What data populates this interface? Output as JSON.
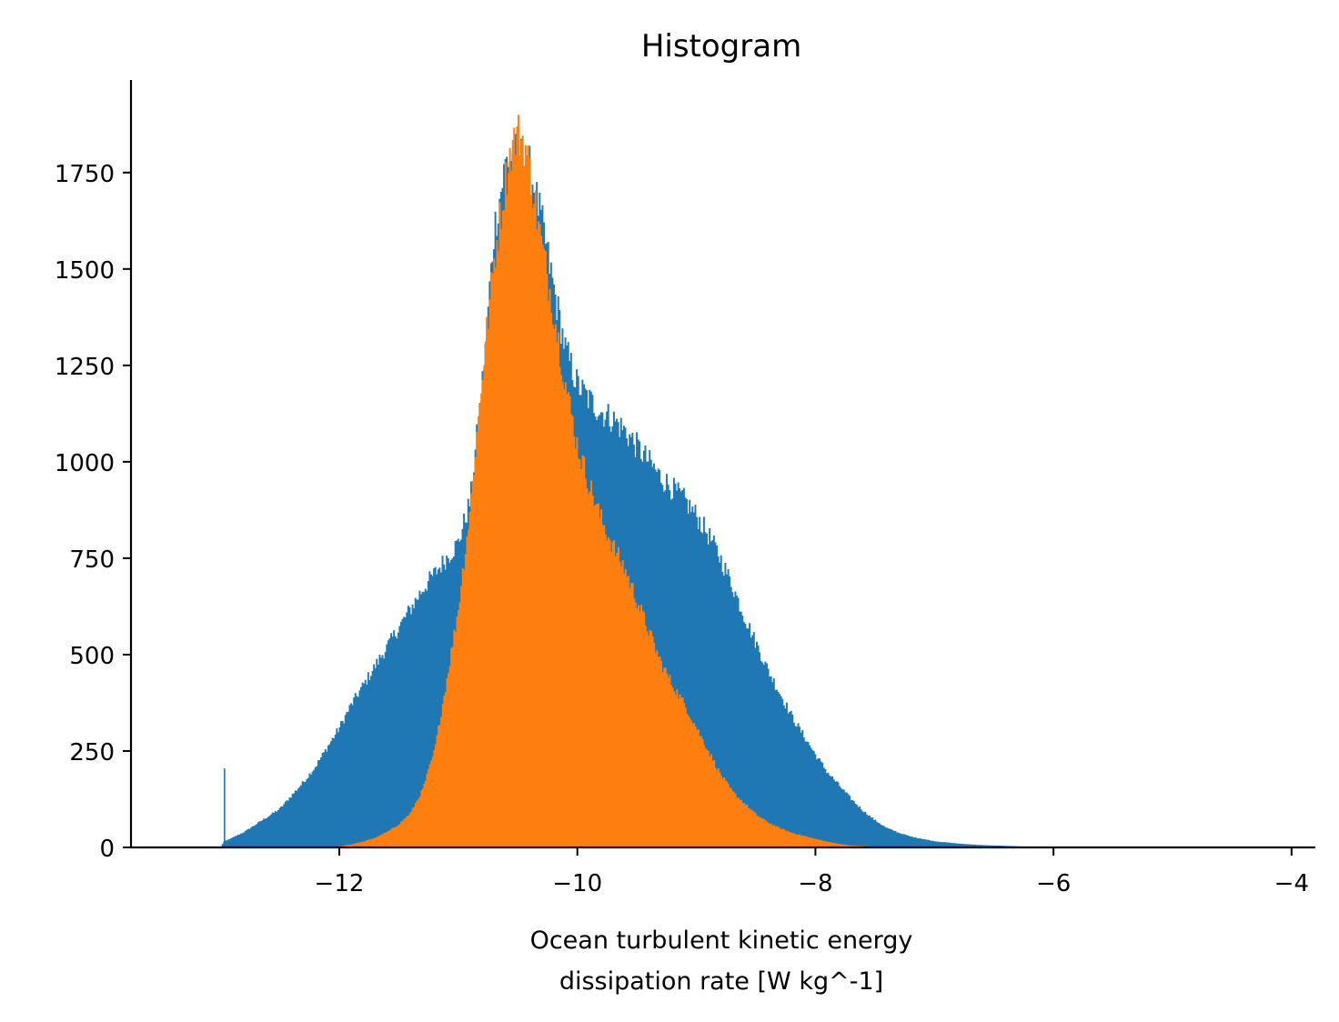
{
  "chart_data": {
    "type": "histogram",
    "title": "Histogram",
    "xlabel": "Ocean turbulent kinetic energy",
    "xlabel_line2": "dissipation rate [W kg^-1]",
    "ylabel": "",
    "xlim": [
      -13.75,
      -3.8
    ],
    "ylim": [
      0,
      1990
    ],
    "x_ticks": [
      -12,
      -10,
      -8,
      -6,
      -4
    ],
    "x_tick_labels": [
      "−12",
      "−10",
      "−8",
      "−6",
      "−4"
    ],
    "y_ticks": [
      0,
      250,
      500,
      750,
      1000,
      1250,
      1500,
      1750
    ],
    "y_tick_labels": [
      "0",
      "250",
      "500",
      "750",
      "1000",
      "1250",
      "1500",
      "1750"
    ],
    "grid": false,
    "legend": "none",
    "series": [
      {
        "color": "#1f77b4",
        "outline": [
          [
            -13.0,
            0
          ],
          [
            -12.97,
            15
          ],
          [
            -12.9,
            25
          ],
          [
            -12.8,
            40
          ],
          [
            -12.7,
            60
          ],
          [
            -12.6,
            80
          ],
          [
            -12.5,
            100
          ],
          [
            -12.4,
            135
          ],
          [
            -12.3,
            170
          ],
          [
            -12.2,
            210
          ],
          [
            -12.1,
            260
          ],
          [
            -12.0,
            310
          ],
          [
            -11.9,
            370
          ],
          [
            -11.8,
            420
          ],
          [
            -11.7,
            470
          ],
          [
            -11.6,
            520
          ],
          [
            -11.5,
            570
          ],
          [
            -11.4,
            620
          ],
          [
            -11.3,
            670
          ],
          [
            -11.2,
            710
          ],
          [
            -11.1,
            750
          ],
          [
            -11.0,
            790
          ],
          [
            -10.9,
            900
          ],
          [
            -10.8,
            1200
          ],
          [
            -10.7,
            1600
          ],
          [
            -10.6,
            1780
          ],
          [
            -10.5,
            1800
          ],
          [
            -10.4,
            1760
          ],
          [
            -10.3,
            1620
          ],
          [
            -10.2,
            1450
          ],
          [
            -10.1,
            1290
          ],
          [
            -10.0,
            1200
          ],
          [
            -9.9,
            1160
          ],
          [
            -9.8,
            1130
          ],
          [
            -9.7,
            1110
          ],
          [
            -9.6,
            1080
          ],
          [
            -9.5,
            1040
          ],
          [
            -9.4,
            1000
          ],
          [
            -9.3,
            960
          ],
          [
            -9.2,
            930
          ],
          [
            -9.1,
            900
          ],
          [
            -9.0,
            860
          ],
          [
            -8.9,
            810
          ],
          [
            -8.8,
            750
          ],
          [
            -8.7,
            680
          ],
          [
            -8.6,
            600
          ],
          [
            -8.5,
            530
          ],
          [
            -8.4,
            460
          ],
          [
            -8.3,
            400
          ],
          [
            -8.2,
            340
          ],
          [
            -8.1,
            290
          ],
          [
            -8.0,
            240
          ],
          [
            -7.9,
            195
          ],
          [
            -7.8,
            160
          ],
          [
            -7.7,
            125
          ],
          [
            -7.6,
            95
          ],
          [
            -7.5,
            70
          ],
          [
            -7.4,
            50
          ],
          [
            -7.3,
            38
          ],
          [
            -7.2,
            28
          ],
          [
            -7.1,
            22
          ],
          [
            -7.0,
            16
          ],
          [
            -6.8,
            10
          ],
          [
            -6.6,
            6
          ],
          [
            -6.4,
            4
          ],
          [
            -6.2,
            2
          ],
          [
            -6.0,
            1
          ],
          [
            -5.8,
            0.5
          ],
          [
            -5.5,
            0
          ]
        ],
        "spike": [
          -12.97,
          205
        ]
      },
      {
        "color": "#ff7f0e",
        "outline": [
          [
            -12.05,
            0
          ],
          [
            -12.0,
            3
          ],
          [
            -11.9,
            8
          ],
          [
            -11.8,
            15
          ],
          [
            -11.7,
            25
          ],
          [
            -11.6,
            40
          ],
          [
            -11.5,
            60
          ],
          [
            -11.4,
            90
          ],
          [
            -11.3,
            150
          ],
          [
            -11.2,
            250
          ],
          [
            -11.1,
            430
          ],
          [
            -11.0,
            620
          ],
          [
            -10.9,
            880
          ],
          [
            -10.8,
            1220
          ],
          [
            -10.7,
            1520
          ],
          [
            -10.6,
            1740
          ],
          [
            -10.55,
            1820
          ],
          [
            -10.5,
            1850
          ],
          [
            -10.45,
            1830
          ],
          [
            -10.4,
            1760
          ],
          [
            -10.3,
            1560
          ],
          [
            -10.2,
            1390
          ],
          [
            -10.1,
            1200
          ],
          [
            -10.0,
            1040
          ],
          [
            -9.9,
            940
          ],
          [
            -9.8,
            850
          ],
          [
            -9.7,
            780
          ],
          [
            -9.6,
            720
          ],
          [
            -9.5,
            640
          ],
          [
            -9.4,
            560
          ],
          [
            -9.3,
            480
          ],
          [
            -9.2,
            420
          ],
          [
            -9.1,
            370
          ],
          [
            -9.0,
            310
          ],
          [
            -8.9,
            250
          ],
          [
            -8.8,
            190
          ],
          [
            -8.7,
            145
          ],
          [
            -8.6,
            115
          ],
          [
            -8.5,
            85
          ],
          [
            -8.4,
            65
          ],
          [
            -8.3,
            50
          ],
          [
            -8.2,
            38
          ],
          [
            -8.1,
            30
          ],
          [
            -8.0,
            22
          ],
          [
            -7.9,
            15
          ],
          [
            -7.8,
            9
          ],
          [
            -7.7,
            5
          ],
          [
            -7.5,
            2
          ],
          [
            -7.3,
            0
          ]
        ]
      }
    ]
  }
}
